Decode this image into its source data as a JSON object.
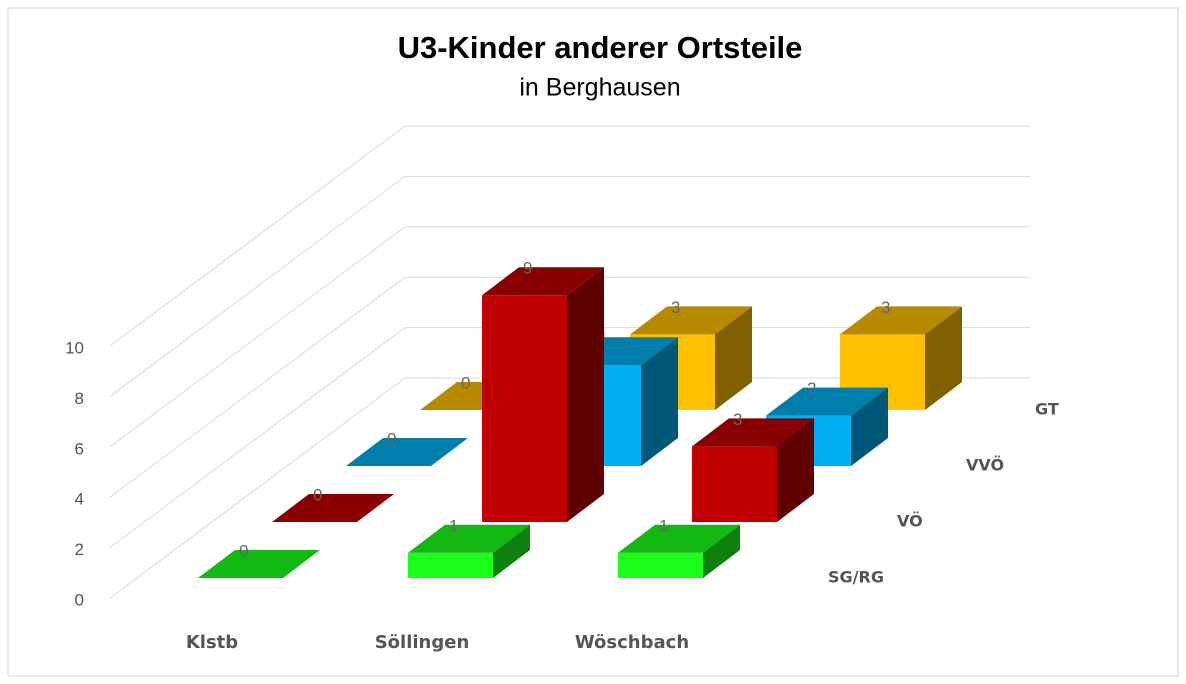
{
  "chart_data": {
    "type": "bar3d",
    "title": "U3-Kinder anderer Ortsteile",
    "subtitle": "in Berghausen",
    "categories": [
      "Klstb",
      "Söllingen",
      "Wöschbach"
    ],
    "series": [
      {
        "name": "SG/RG",
        "color": "#1aff1a",
        "values": [
          0,
          1,
          1
        ]
      },
      {
        "name": "VÖ",
        "color": "#c00000",
        "values": [
          0,
          9,
          3
        ]
      },
      {
        "name": "VVÖ",
        "color": "#00b0f0",
        "values": [
          0,
          4,
          2
        ]
      },
      {
        "name": "GT",
        "color": "#ffc000",
        "values": [
          0,
          3,
          3
        ]
      }
    ],
    "ylim": [
      0,
      10
    ],
    "yticks": [
      0,
      2,
      4,
      6,
      8,
      10
    ],
    "grid": true
  }
}
